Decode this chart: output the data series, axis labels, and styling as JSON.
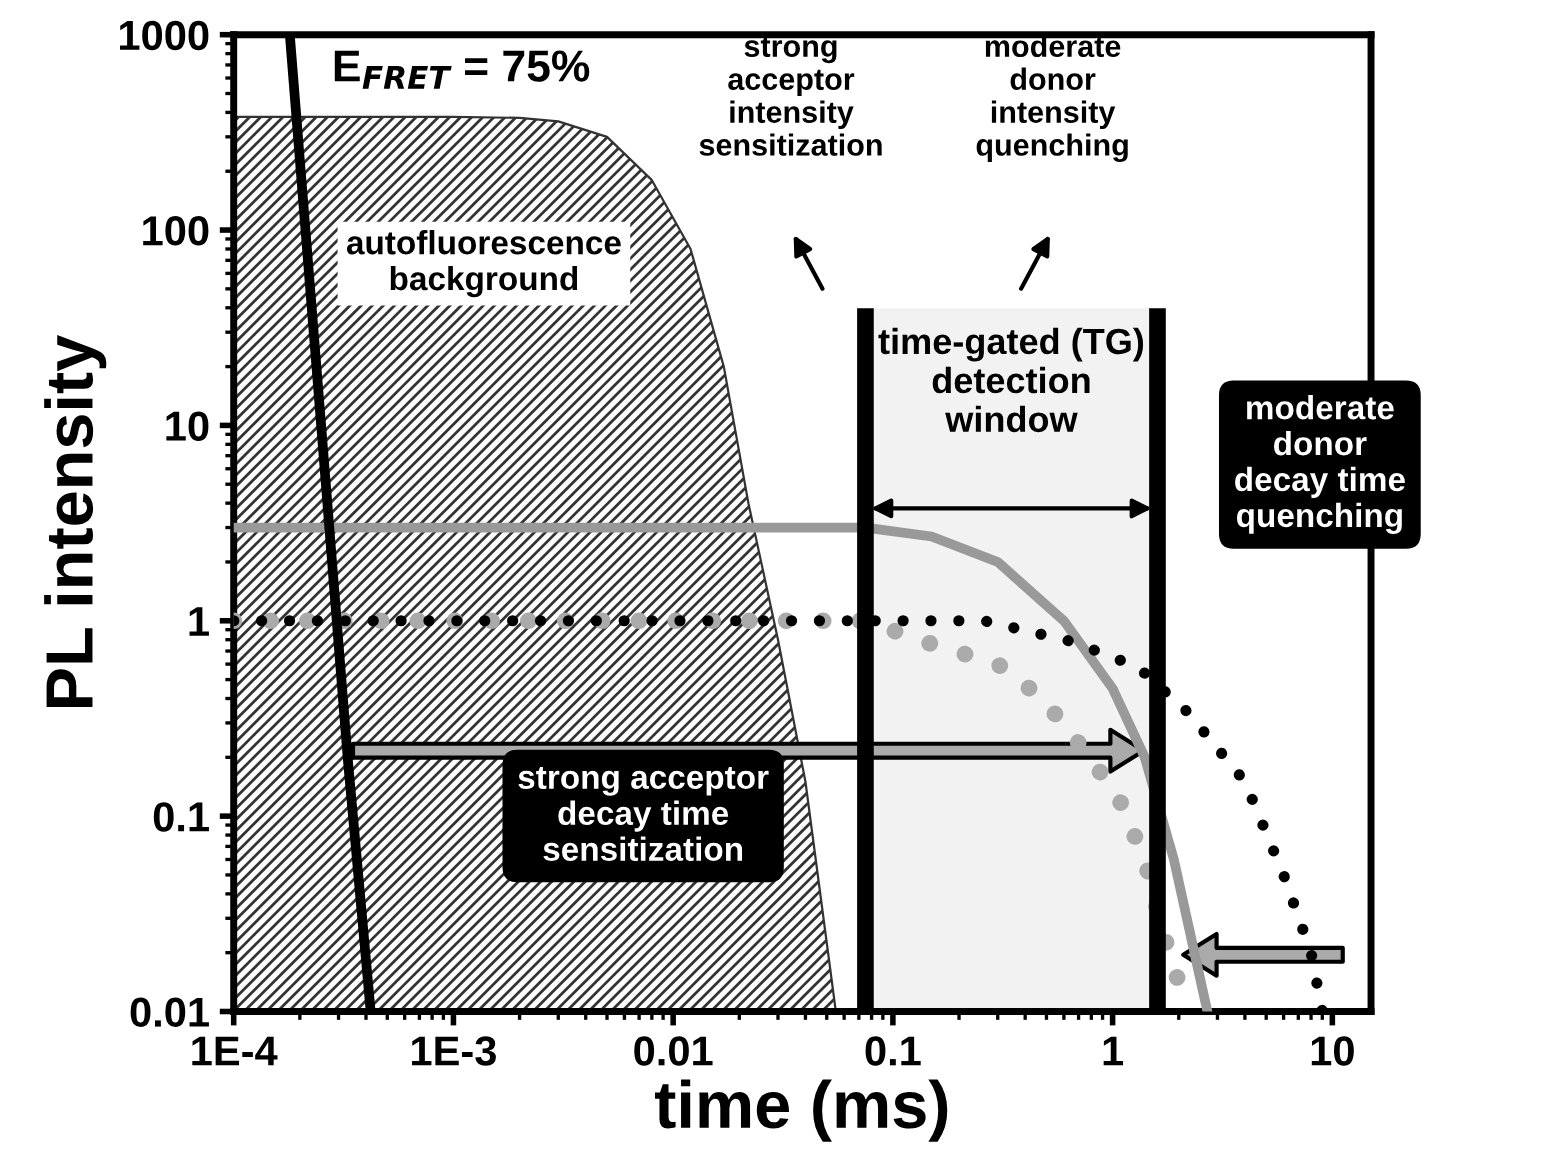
{
  "chart_data": {
    "type": "line",
    "xlabel": "time (ms)",
    "ylabel": "PL intensity",
    "log": "xy",
    "grid": false,
    "legend": false,
    "xlim": [
      0.0001,
      15
    ],
    "ylim": [
      0.01,
      1000
    ],
    "xticks": [
      {
        "value": 0.0001,
        "label": "1E-4"
      },
      {
        "value": 0.001,
        "label": "1E-3"
      },
      0.01,
      0.1,
      1,
      10
    ],
    "yticks": [
      1000,
      100,
      10,
      1,
      0.1,
      0.01
    ],
    "series": [
      {
        "type": "area",
        "color": "#333333",
        "x": [
          0.0001,
          0.001,
          0.002,
          0.003,
          0.005,
          0.008,
          0.012,
          0.017,
          0.022,
          0.03,
          0.04,
          0.055
        ],
        "values": [
          380,
          380,
          375,
          360,
          300,
          180,
          80,
          20,
          4,
          0.8,
          0.15,
          0.01
        ]
      },
      {
        "color": "#000000",
        "line_style": "solid",
        "x": [
          0.00018,
          0.00025,
          0.00033,
          0.00042
        ],
        "values": [
          1000,
          10,
          0.2,
          0.01
        ]
      },
      {
        "color": "#999999",
        "line_style": "solid",
        "x": [
          0.0001,
          0.075,
          0.15,
          0.3,
          0.6,
          1,
          1.4,
          1.9,
          2.7
        ],
        "values": [
          3,
          3,
          2.7,
          2,
          1,
          0.45,
          0.2,
          0.06,
          0.01
        ]
      },
      {
        "color": "#000000",
        "line_style": "dotted",
        "x": [
          0.0001,
          0.26,
          0.66,
          1.3,
          2.2,
          4,
          6,
          8,
          9
        ],
        "values": [
          1,
          1,
          0.78,
          0.58,
          0.34,
          0.15,
          0.05,
          0.02,
          0.01
        ]
      },
      {
        "color": "#aaaaaa",
        "line_style": "dotted",
        "x": [
          0.0001,
          0.075,
          0.14,
          0.3,
          0.48,
          0.79,
          1.13,
          1.44,
          1.7,
          2.2
        ],
        "values": [
          1,
          1,
          0.78,
          0.6,
          0.4,
          0.2,
          0.11,
          0.053,
          0.025,
          0.01
        ]
      }
    ],
    "bands": [
      {
        "axis": "x",
        "from": 0.075,
        "to": 1.6,
        "label": "time-gated (TG)\ndetection\nwindow",
        "color": "#f2f2f2"
      }
    ],
    "annotations": [
      "E$_{FRET}$ = 75%",
      "autofluorescence\nbackground",
      "strong\nacceptor\nintensity\nsensitization",
      "moderate\ndonor\nintensity\nquenching",
      "strong acceptor\ndecay time\nsensitization",
      "moderate\ndonor\ndecay time\nquenching"
    ]
  }
}
